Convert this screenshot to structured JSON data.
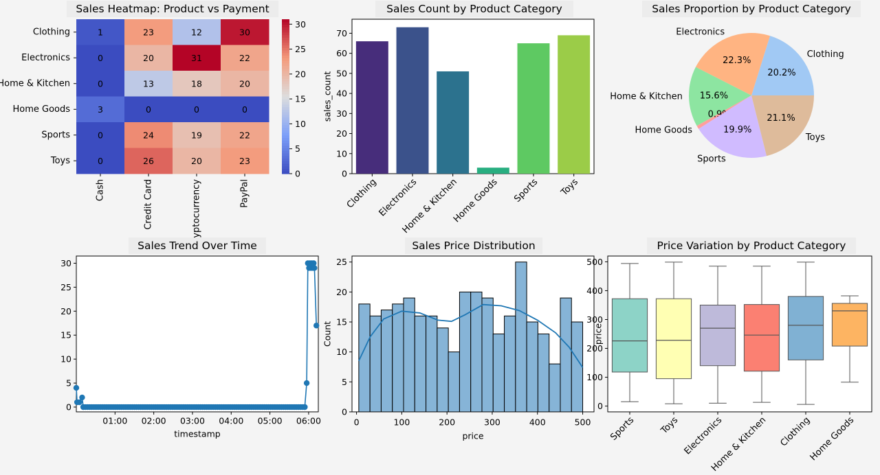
{
  "chart_data": [
    {
      "type": "heatmap",
      "title": "Sales Heatmap: Product vs Payment",
      "rows": [
        "Clothing",
        "Electronics",
        "Home & Kitchen",
        "Home Goods",
        "Sports",
        "Toys"
      ],
      "cols": [
        "Cash",
        "Credit Card",
        "Cryptocurrency",
        "PayPal"
      ],
      "values": [
        [
          1,
          23,
          12,
          30
        ],
        [
          0,
          20,
          31,
          22
        ],
        [
          0,
          13,
          18,
          20
        ],
        [
          3,
          0,
          0,
          0
        ],
        [
          0,
          24,
          19,
          22
        ],
        [
          0,
          26,
          20,
          23
        ]
      ],
      "colorbar_ticks": [
        0,
        5,
        10,
        15,
        20,
        25,
        30
      ],
      "vmin": 0,
      "vmax": 31,
      "colormap": "coolwarm"
    },
    {
      "type": "bar",
      "title": "Sales Count by Product Category",
      "xlabel": "",
      "ylabel": "sales_count",
      "categories": [
        "Clothing",
        "Electronics",
        "Home & Kitchen",
        "Home Goods",
        "Sports",
        "Toys"
      ],
      "values": [
        66,
        73,
        51,
        3,
        65,
        69
      ],
      "colors": [
        "#472d7b",
        "#3b528b",
        "#2c728e",
        "#28ae80",
        "#5ec962",
        "#9bcc48"
      ],
      "ylim": [
        0,
        77
      ],
      "yticks": [
        0,
        10,
        20,
        30,
        40,
        50,
        60,
        70
      ]
    },
    {
      "type": "pie",
      "title": "Sales Proportion by Product Category",
      "labels": [
        "Clothing",
        "Electronics",
        "Home & Kitchen",
        "Home Goods",
        "Sports",
        "Toys"
      ],
      "values": [
        20.2,
        22.3,
        15.6,
        0.9,
        19.9,
        21.1
      ],
      "pct_labels": [
        "20.2%",
        "22.3%",
        "15.6%",
        "0.9%",
        "19.9%",
        "21.1%"
      ],
      "colors": [
        "#a1c9f4",
        "#ffb482",
        "#8de5a1",
        "#ff9f9b",
        "#d0bbff",
        "#debb9b"
      ]
    },
    {
      "type": "line",
      "title": "Sales Trend Over Time",
      "xlabel": "timestamp",
      "ylabel": "",
      "xticks": [
        "01:00",
        "02:00",
        "03:00",
        "04:00",
        "05:00",
        "06:00"
      ],
      "xlim_hours": [
        0,
        6.25
      ],
      "ylim": [
        -1,
        31.5
      ],
      "yticks": [
        0,
        5,
        10,
        15,
        20,
        25,
        30
      ],
      "points": [
        {
          "x": 0.0,
          "y": 4
        },
        {
          "x": 0.02,
          "y": 1
        },
        {
          "x": 0.08,
          "y": 1
        },
        {
          "x": 0.15,
          "y": 2
        },
        {
          "x": 0.18,
          "y": 0
        },
        {
          "x": 5.9,
          "y": 0
        },
        {
          "x": 5.95,
          "y": 5
        },
        {
          "x": 5.98,
          "y": 30
        },
        {
          "x": 6.01,
          "y": 29
        },
        {
          "x": 6.03,
          "y": 30
        },
        {
          "x": 6.06,
          "y": 29
        },
        {
          "x": 6.08,
          "y": 30
        },
        {
          "x": 6.11,
          "y": 29
        },
        {
          "x": 6.13,
          "y": 30
        },
        {
          "x": 6.15,
          "y": 29
        },
        {
          "x": 6.2,
          "y": 17
        }
      ],
      "zero_run": {
        "from": 0.18,
        "to": 5.9,
        "step": 0.055
      },
      "color": "#1f77b4"
    },
    {
      "type": "histogram",
      "title": "Sales Price Distribution",
      "xlabel": "price",
      "ylabel": "Count",
      "bin_start": 5,
      "bin_width": 24.75,
      "counts": [
        18,
        16,
        17,
        18,
        19,
        16,
        16,
        14,
        10,
        20,
        20,
        19,
        13,
        16,
        25,
        15,
        13,
        8,
        19,
        15
      ],
      "kde": [
        [
          5,
          8.5
        ],
        [
          30,
          12.5
        ],
        [
          60,
          15.5
        ],
        [
          100,
          16.8
        ],
        [
          140,
          16.5
        ],
        [
          180,
          15.3
        ],
        [
          210,
          15.1
        ],
        [
          240,
          16.2
        ],
        [
          280,
          17.9
        ],
        [
          320,
          17.7
        ],
        [
          360,
          16.9
        ],
        [
          400,
          15.3
        ],
        [
          440,
          13.2
        ],
        [
          470,
          10.8
        ],
        [
          500,
          7.4
        ]
      ],
      "xlim": [
        -10,
        525
      ],
      "ylim": [
        0,
        26
      ],
      "xticks": [
        0,
        100,
        200,
        300,
        400,
        500
      ],
      "yticks": [
        0,
        5,
        10,
        15,
        20,
        25
      ],
      "bar_color": "#86b4d7",
      "line_color": "#1f77b4"
    },
    {
      "type": "box",
      "title": "Price Variation by Product Category",
      "xlabel": "",
      "ylabel": "price",
      "categories": [
        "Sports",
        "Toys",
        "Electronics",
        "Home & Kitchen",
        "Clothing",
        "Home Goods"
      ],
      "boxes": [
        {
          "whislo": 15,
          "q1": 118,
          "med": 226,
          "q3": 372,
          "whishi": 494
        },
        {
          "whislo": 8,
          "q1": 95,
          "med": 228,
          "q3": 372,
          "whishi": 499
        },
        {
          "whislo": 10,
          "q1": 140,
          "med": 270,
          "q3": 350,
          "whishi": 485
        },
        {
          "whislo": 13,
          "q1": 121,
          "med": 246,
          "q3": 352,
          "whishi": 485
        },
        {
          "whislo": 6,
          "q1": 160,
          "med": 280,
          "q3": 380,
          "whishi": 499
        },
        {
          "whislo": 83,
          "q1": 208,
          "med": 330,
          "q3": 356,
          "whishi": 382
        }
      ],
      "colors": [
        "#8dd3c7",
        "#ffffb3",
        "#bebada",
        "#fb8072",
        "#80b1d3",
        "#fdb462"
      ],
      "ylim": [
        -20,
        520
      ],
      "yticks": [
        0,
        100,
        200,
        300,
        400,
        500
      ]
    }
  ]
}
